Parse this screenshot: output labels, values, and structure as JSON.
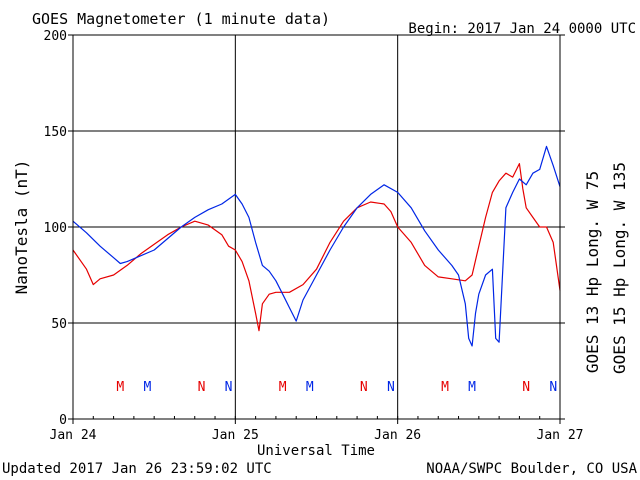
{
  "chart_data": {
    "type": "line",
    "title": "GOES Magnetometer (1 minute data)",
    "begin_label": "Begin:  2017 Jan 24 0000 UTC",
    "xlabel": "Universal Time",
    "ylabel": "NanoTesla (nT)",
    "ylim": [
      0,
      200
    ],
    "y_ticks": [
      0,
      50,
      100,
      150,
      200
    ],
    "xlim": [
      "2017-01-24 00:00",
      "2017-01-27 00:00"
    ],
    "x_ticks": [
      {
        "label": "Jan 24",
        "t": "2017-01-24 00:00"
      },
      {
        "label": "Jan 25",
        "t": "2017-01-25 00:00"
      },
      {
        "label": "Jan 26",
        "t": "2017-01-26 00:00"
      },
      {
        "label": "Jan 27",
        "t": "2017-01-27 00:00"
      }
    ],
    "grid": true,
    "footer_left": "Updated 2017 Jan 26 23:59:02 UTC",
    "footer_right": "NOAA/SWPC Boulder, CO USA",
    "series": [
      {
        "name": "GOES 13 Hp  Long. W 75",
        "color": "#e60000",
        "points": [
          [
            "2017-01-24 00:00",
            88
          ],
          [
            "2017-01-24 02:00",
            78
          ],
          [
            "2017-01-24 03:00",
            70
          ],
          [
            "2017-01-24 04:00",
            73
          ],
          [
            "2017-01-24 06:00",
            75
          ],
          [
            "2017-01-24 08:00",
            80
          ],
          [
            "2017-01-24 10:00",
            86
          ],
          [
            "2017-01-24 12:00",
            91
          ],
          [
            "2017-01-24 14:00",
            96
          ],
          [
            "2017-01-24 16:00",
            100
          ],
          [
            "2017-01-24 18:00",
            103
          ],
          [
            "2017-01-24 20:00",
            101
          ],
          [
            "2017-01-24 22:00",
            96
          ],
          [
            "2017-01-24 23:00",
            90
          ],
          [
            "2017-01-25 00:00",
            88
          ],
          [
            "2017-01-25 01:00",
            82
          ],
          [
            "2017-01-25 02:00",
            72
          ],
          [
            "2017-01-25 03:00",
            55
          ],
          [
            "2017-01-25 03:30",
            46
          ],
          [
            "2017-01-25 04:00",
            60
          ],
          [
            "2017-01-25 05:00",
            65
          ],
          [
            "2017-01-25 06:00",
            66
          ],
          [
            "2017-01-25 08:00",
            66
          ],
          [
            "2017-01-25 10:00",
            70
          ],
          [
            "2017-01-25 12:00",
            78
          ],
          [
            "2017-01-25 14:00",
            92
          ],
          [
            "2017-01-25 16:00",
            103
          ],
          [
            "2017-01-25 18:00",
            110
          ],
          [
            "2017-01-25 20:00",
            113
          ],
          [
            "2017-01-25 22:00",
            112
          ],
          [
            "2017-01-25 23:00",
            108
          ],
          [
            "2017-01-26 00:00",
            100
          ],
          [
            "2017-01-26 02:00",
            92
          ],
          [
            "2017-01-26 04:00",
            80
          ],
          [
            "2017-01-26 06:00",
            74
          ],
          [
            "2017-01-26 08:00",
            73
          ],
          [
            "2017-01-26 10:00",
            72
          ],
          [
            "2017-01-26 11:00",
            75
          ],
          [
            "2017-01-26 12:00",
            90
          ],
          [
            "2017-01-26 13:00",
            105
          ],
          [
            "2017-01-26 14:00",
            118
          ],
          [
            "2017-01-26 15:00",
            124
          ],
          [
            "2017-01-26 16:00",
            128
          ],
          [
            "2017-01-26 17:00",
            126
          ],
          [
            "2017-01-26 18:00",
            133
          ],
          [
            "2017-01-26 18:30",
            120
          ],
          [
            "2017-01-26 19:00",
            110
          ],
          [
            "2017-01-26 20:00",
            105
          ],
          [
            "2017-01-26 21:00",
            100
          ],
          [
            "2017-01-26 22:00",
            100
          ],
          [
            "2017-01-26 23:00",
            92
          ],
          [
            "2017-01-27 00:00",
            67
          ]
        ]
      },
      {
        "name": "GOES 15 Hp  Long. W 135",
        "color": "#0026e6",
        "points": [
          [
            "2017-01-24 00:00",
            103
          ],
          [
            "2017-01-24 02:00",
            97
          ],
          [
            "2017-01-24 04:00",
            90
          ],
          [
            "2017-01-24 06:00",
            84
          ],
          [
            "2017-01-24 07:00",
            81
          ],
          [
            "2017-01-24 08:00",
            82
          ],
          [
            "2017-01-24 10:00",
            85
          ],
          [
            "2017-01-24 12:00",
            88
          ],
          [
            "2017-01-24 14:00",
            94
          ],
          [
            "2017-01-24 16:00",
            100
          ],
          [
            "2017-01-24 18:00",
            105
          ],
          [
            "2017-01-24 20:00",
            109
          ],
          [
            "2017-01-24 22:00",
            112
          ],
          [
            "2017-01-25 00:00",
            117
          ],
          [
            "2017-01-25 01:00",
            112
          ],
          [
            "2017-01-25 02:00",
            105
          ],
          [
            "2017-01-25 03:00",
            92
          ],
          [
            "2017-01-25 04:00",
            80
          ],
          [
            "2017-01-25 05:00",
            77
          ],
          [
            "2017-01-25 06:00",
            72
          ],
          [
            "2017-01-25 07:00",
            65
          ],
          [
            "2017-01-25 08:00",
            58
          ],
          [
            "2017-01-25 09:00",
            51
          ],
          [
            "2017-01-25 10:00",
            62
          ],
          [
            "2017-01-25 12:00",
            75
          ],
          [
            "2017-01-25 14:00",
            88
          ],
          [
            "2017-01-25 16:00",
            100
          ],
          [
            "2017-01-25 18:00",
            110
          ],
          [
            "2017-01-25 20:00",
            117
          ],
          [
            "2017-01-25 22:00",
            122
          ],
          [
            "2017-01-26 00:00",
            118
          ],
          [
            "2017-01-26 02:00",
            110
          ],
          [
            "2017-01-26 04:00",
            98
          ],
          [
            "2017-01-26 06:00",
            88
          ],
          [
            "2017-01-26 08:00",
            80
          ],
          [
            "2017-01-26 09:00",
            75
          ],
          [
            "2017-01-26 10:00",
            60
          ],
          [
            "2017-01-26 10:30",
            42
          ],
          [
            "2017-01-26 11:00",
            38
          ],
          [
            "2017-01-26 11:30",
            55
          ],
          [
            "2017-01-26 12:00",
            65
          ],
          [
            "2017-01-26 13:00",
            75
          ],
          [
            "2017-01-26 14:00",
            78
          ],
          [
            "2017-01-26 14:30",
            42
          ],
          [
            "2017-01-26 15:00",
            40
          ],
          [
            "2017-01-26 16:00",
            110
          ],
          [
            "2017-01-26 17:00",
            118
          ],
          [
            "2017-01-26 18:00",
            125
          ],
          [
            "2017-01-26 19:00",
            122
          ],
          [
            "2017-01-26 20:00",
            128
          ],
          [
            "2017-01-26 21:00",
            130
          ],
          [
            "2017-01-26 22:00",
            142
          ],
          [
            "2017-01-26 23:00",
            132
          ],
          [
            "2017-01-27 00:00",
            121
          ]
        ]
      }
    ],
    "markers": [
      {
        "label": "M",
        "series": 0,
        "t": "2017-01-24 07:00"
      },
      {
        "label": "M",
        "series": 1,
        "t": "2017-01-24 11:00"
      },
      {
        "label": "N",
        "series": 0,
        "t": "2017-01-24 19:00"
      },
      {
        "label": "N",
        "series": 1,
        "t": "2017-01-24 23:00"
      },
      {
        "label": "M",
        "series": 0,
        "t": "2017-01-25 07:00"
      },
      {
        "label": "M",
        "series": 1,
        "t": "2017-01-25 11:00"
      },
      {
        "label": "N",
        "series": 0,
        "t": "2017-01-25 19:00"
      },
      {
        "label": "N",
        "series": 1,
        "t": "2017-01-25 23:00"
      },
      {
        "label": "M",
        "series": 0,
        "t": "2017-01-26 07:00"
      },
      {
        "label": "M",
        "series": 1,
        "t": "2017-01-26 11:00"
      },
      {
        "label": "N",
        "series": 0,
        "t": "2017-01-26 19:00"
      },
      {
        "label": "N",
        "series": 1,
        "t": "2017-01-26 23:00"
      }
    ]
  }
}
